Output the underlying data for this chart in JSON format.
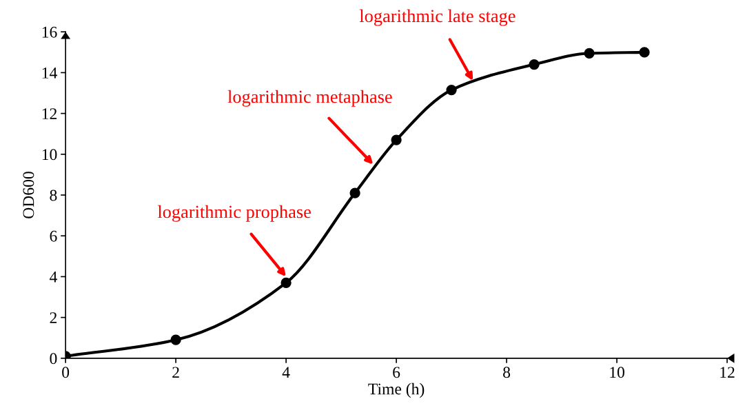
{
  "chart_data": {
    "type": "line",
    "xlabel": "Time (h)",
    "ylabel": "OD600",
    "x": [
      0,
      2,
      4,
      5.25,
      6,
      7,
      8.5,
      9.5,
      10.5
    ],
    "series": [
      {
        "color": "#000000",
        "values": [
          0.1,
          0.9,
          3.7,
          8.1,
          10.7,
          13.15,
          14.4,
          14.95,
          15.0
        ]
      }
    ],
    "marker": "circle",
    "line_style": "solid",
    "grid": false,
    "xlim": [
      0,
      12
    ],
    "xticks": [
      0,
      2,
      4,
      6,
      8,
      10,
      12
    ],
    "ylim": [
      0,
      16
    ],
    "yticks": [
      0,
      2,
      4,
      6,
      8,
      10,
      12,
      14,
      16
    ],
    "annotations": [
      {
        "text": "logarithmic prophase",
        "x": 4,
        "y": 4.0
      },
      {
        "text": "logarithmic metaphase",
        "x": 5.58,
        "y": 9.5
      },
      {
        "text": "logarithmic late stage",
        "x": 7.39,
        "y": 13.6
      }
    ]
  }
}
